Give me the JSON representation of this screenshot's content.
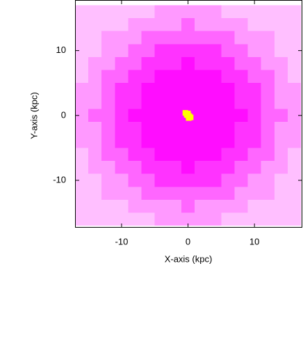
{
  "chart_data": {
    "type": "heatmap",
    "xlabel": "X-axis (kpc)",
    "ylabel": "Y-axis (kpc)",
    "xlim": [
      -17,
      17.2
    ],
    "ylim": [
      -17.3,
      17.8
    ],
    "xticks": [
      -10,
      0,
      10
    ],
    "yticks": [
      -10,
      0,
      10
    ],
    "color": "#ff00ff",
    "xbins": [
      -17,
      -15,
      -13,
      -11,
      -9,
      -7,
      -5,
      -3,
      -1,
      1,
      3,
      5,
      7,
      9,
      11,
      13,
      15,
      17
    ],
    "ybins": [
      -17,
      -15,
      -13,
      -11,
      -9,
      -7,
      -5,
      -3,
      -1,
      1,
      3,
      5,
      7,
      9,
      11,
      13,
      15,
      17
    ],
    "z": [
      [
        0.25,
        0.25,
        0.25,
        0.25,
        0.25,
        0.25,
        0.4,
        0.4,
        0.4,
        0.4,
        0.4,
        0.25,
        0.25,
        0.25,
        0.25,
        0.25,
        0.25
      ],
      [
        0.25,
        0.25,
        0.25,
        0.25,
        0.4,
        0.4,
        0.4,
        0.4,
        0.6,
        0.4,
        0.4,
        0.4,
        0.4,
        0.25,
        0.25,
        0.25,
        0.25
      ],
      [
        0.25,
        0.25,
        0.4,
        0.4,
        0.4,
        0.6,
        0.6,
        0.6,
        0.6,
        0.6,
        0.6,
        0.6,
        0.4,
        0.4,
        0.4,
        0.25,
        0.25
      ],
      [
        0.25,
        0.25,
        0.4,
        0.4,
        0.6,
        0.6,
        0.8,
        0.8,
        0.8,
        0.8,
        0.8,
        0.6,
        0.6,
        0.4,
        0.4,
        0.25,
        0.25
      ],
      [
        0.25,
        0.4,
        0.4,
        0.6,
        0.6,
        0.8,
        0.8,
        0.8,
        0.95,
        0.8,
        0.8,
        0.8,
        0.6,
        0.6,
        0.4,
        0.4,
        0.25
      ],
      [
        0.25,
        0.4,
        0.6,
        0.6,
        0.8,
        0.8,
        0.95,
        0.95,
        0.95,
        0.95,
        0.95,
        0.8,
        0.8,
        0.6,
        0.6,
        0.4,
        0.25
      ],
      [
        0.4,
        0.4,
        0.6,
        0.8,
        0.8,
        0.95,
        0.95,
        0.95,
        0.95,
        0.95,
        0.95,
        0.95,
        0.8,
        0.8,
        0.6,
        0.4,
        0.4
      ],
      [
        0.4,
        0.4,
        0.6,
        0.8,
        0.8,
        0.95,
        0.95,
        0.95,
        0.95,
        0.95,
        0.95,
        0.95,
        0.8,
        0.8,
        0.6,
        0.4,
        0.4
      ],
      [
        0.4,
        0.6,
        0.6,
        0.8,
        0.95,
        0.95,
        0.95,
        0.95,
        0.95,
        0.95,
        0.95,
        0.95,
        0.95,
        0.8,
        0.6,
        0.6,
        0.4
      ],
      [
        0.4,
        0.4,
        0.6,
        0.8,
        0.8,
        0.95,
        0.95,
        0.95,
        0.95,
        0.95,
        0.95,
        0.95,
        0.8,
        0.8,
        0.6,
        0.4,
        0.4
      ],
      [
        0.4,
        0.4,
        0.6,
        0.8,
        0.8,
        0.95,
        0.95,
        0.95,
        0.95,
        0.95,
        0.95,
        0.95,
        0.8,
        0.8,
        0.6,
        0.4,
        0.4
      ],
      [
        0.25,
        0.4,
        0.6,
        0.6,
        0.8,
        0.8,
        0.95,
        0.95,
        0.95,
        0.95,
        0.95,
        0.8,
        0.8,
        0.6,
        0.6,
        0.4,
        0.25
      ],
      [
        0.25,
        0.4,
        0.4,
        0.6,
        0.6,
        0.8,
        0.8,
        0.8,
        0.95,
        0.8,
        0.8,
        0.8,
        0.6,
        0.6,
        0.4,
        0.4,
        0.25
      ],
      [
        0.25,
        0.25,
        0.4,
        0.4,
        0.6,
        0.6,
        0.8,
        0.8,
        0.8,
        0.8,
        0.8,
        0.6,
        0.6,
        0.4,
        0.4,
        0.25,
        0.25
      ],
      [
        0.25,
        0.25,
        0.4,
        0.4,
        0.4,
        0.6,
        0.6,
        0.6,
        0.6,
        0.6,
        0.6,
        0.6,
        0.4,
        0.4,
        0.4,
        0.25,
        0.25
      ],
      [
        0.25,
        0.25,
        0.25,
        0.25,
        0.4,
        0.4,
        0.4,
        0.4,
        0.6,
        0.4,
        0.4,
        0.4,
        0.4,
        0.25,
        0.25,
        0.25,
        0.25
      ],
      [
        0.25,
        0.25,
        0.25,
        0.25,
        0.25,
        0.25,
        0.4,
        0.4,
        0.4,
        0.4,
        0.4,
        0.25,
        0.25,
        0.25,
        0.25,
        0.25,
        0.25
      ]
    ],
    "core_points": {
      "color": "#ffff00",
      "x": [
        -0.4,
        -0.2,
        0,
        0.2,
        0.4,
        0,
        0.1,
        -0.1
      ],
      "y": [
        0.4,
        0.1,
        0,
        -0.1,
        -0.3,
        0.3,
        -0.4,
        0.2
      ]
    }
  }
}
